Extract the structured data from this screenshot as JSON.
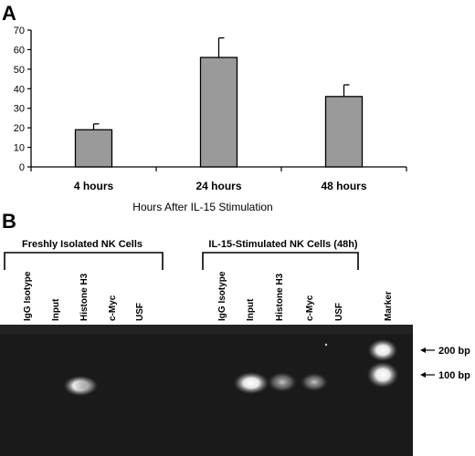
{
  "panel_a": {
    "label": "A",
    "chart_data": {
      "type": "bar",
      "categories": [
        "4 hours",
        "24 hours",
        "48 hours"
      ],
      "values": [
        19,
        56,
        36
      ],
      "errors": [
        3,
        10,
        6
      ],
      "xlabel": "Hours After IL-15 Stimulation",
      "ylabel": "",
      "ylim": [
        0,
        70
      ],
      "yticks": [
        0,
        10,
        20,
        30,
        40,
        50,
        60,
        70
      ],
      "grid": false,
      "colors": {
        "bar": "#9a9a9a",
        "bar_edge": "#000000"
      }
    }
  },
  "panel_b": {
    "label": "B",
    "groups": [
      {
        "title": "Freshly Isolated NK Cells",
        "lanes": [
          "IgG Isotype",
          "Input",
          "Histone H3",
          "c-Myc",
          "USF"
        ]
      },
      {
        "title": "IL-15-Stimulated NK Cells (48h)",
        "lanes": [
          "IgG Isotype",
          "Input",
          "Histone H3",
          "c-Myc",
          "USF"
        ]
      }
    ],
    "marker_label": "Marker",
    "size_labels": [
      "200 bp",
      "100 bp"
    ],
    "gel_color": "#1a1a1a"
  }
}
